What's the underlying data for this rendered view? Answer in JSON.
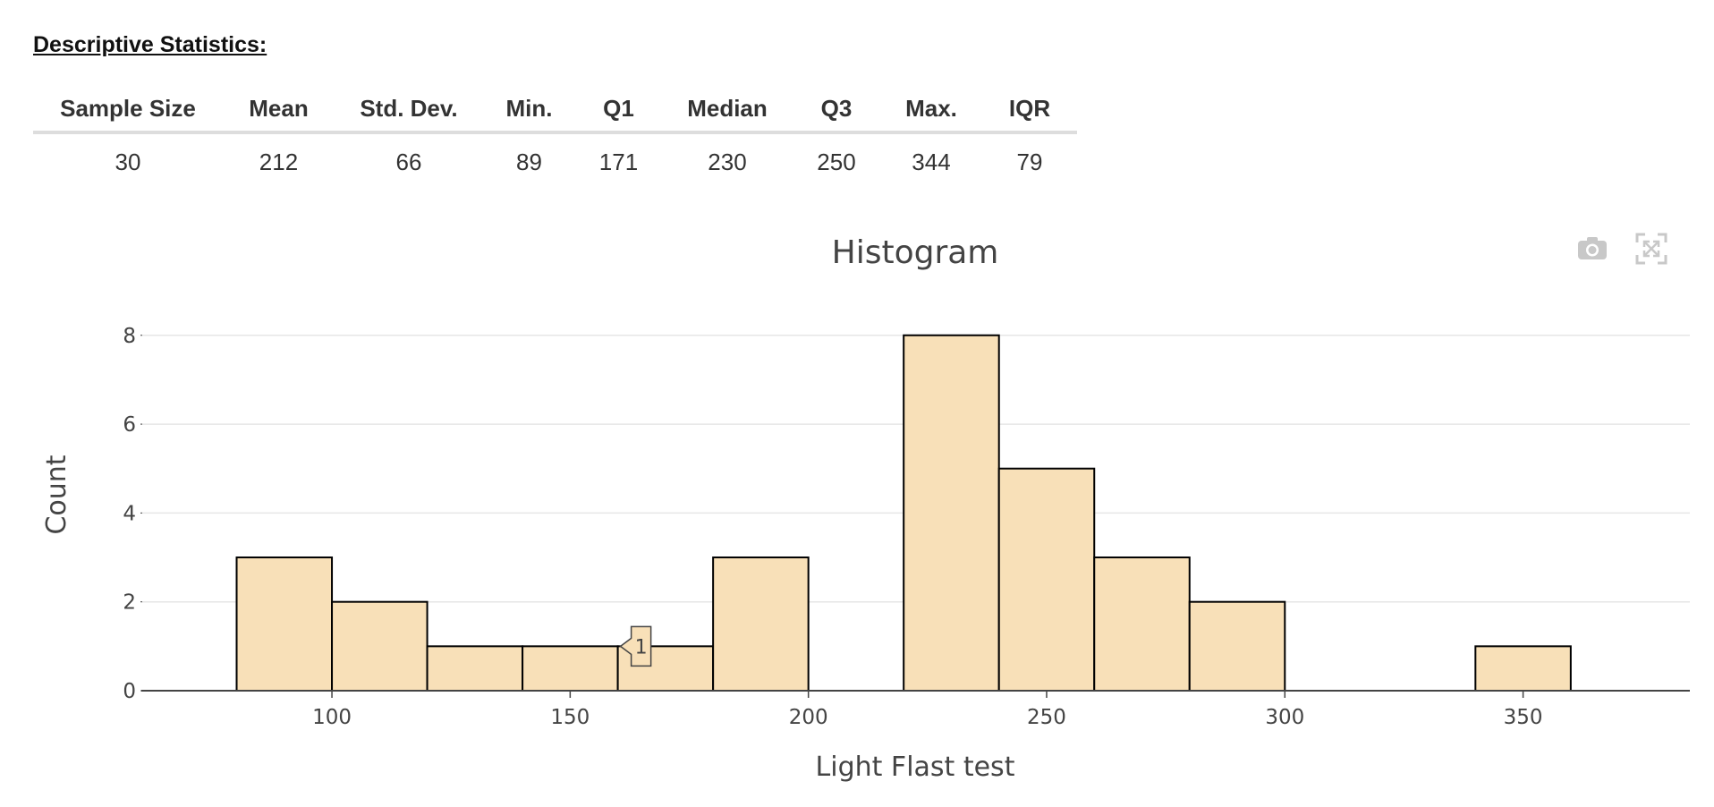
{
  "stats": {
    "heading": "Descriptive Statistics:",
    "headers": [
      "Sample Size",
      "Mean",
      "Std. Dev.",
      "Min.",
      "Q1",
      "Median",
      "Q3",
      "Max.",
      "IQR"
    ],
    "values": [
      "30",
      "212",
      "66",
      "89",
      "171",
      "230",
      "250",
      "344",
      "79"
    ]
  },
  "modebar": {
    "camera_icon": "camera-icon",
    "autoscale_icon": "autoscale-icon"
  },
  "chart_data": {
    "type": "bar",
    "title": "Histogram",
    "xlabel": "Light Flast test",
    "ylabel": "Count",
    "bin_edges": [
      80,
      100,
      120,
      140,
      160,
      180,
      200,
      220,
      240,
      260,
      280,
      300,
      320,
      340,
      360
    ],
    "values": [
      3,
      2,
      1,
      1,
      1,
      3,
      0,
      8,
      5,
      3,
      2,
      0,
      0,
      1
    ],
    "xlim": [
      60,
      385
    ],
    "ylim": [
      0,
      8.7
    ],
    "xticks": [
      100,
      150,
      200,
      250,
      300,
      350
    ],
    "yticks": [
      0,
      2,
      4,
      6,
      8
    ],
    "bar_color": "#f8e0b8",
    "bar_edge_color": "#000000",
    "grid": true,
    "hover_label": {
      "text": "1",
      "bin_index": 4
    }
  }
}
